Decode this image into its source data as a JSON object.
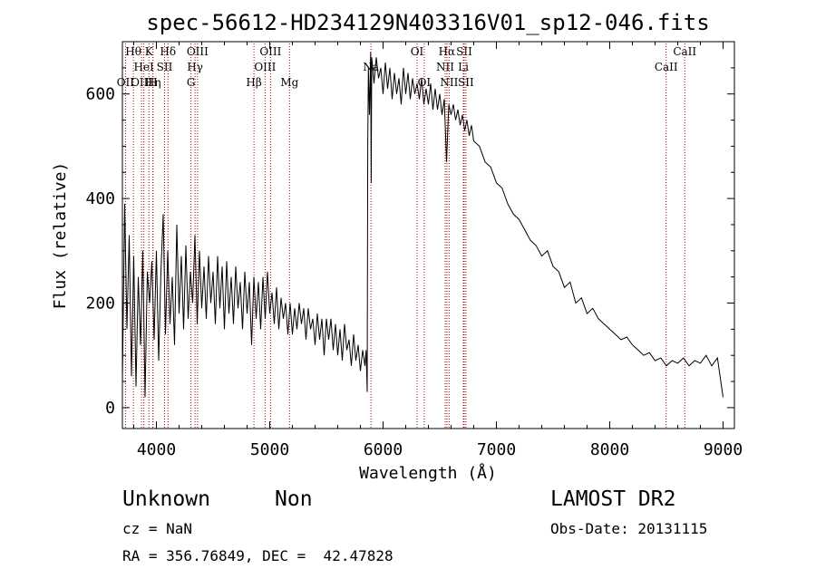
{
  "chart_data": {
    "type": "line",
    "title": "spec-56612-HD234129N403316V01_sp12-046.fits",
    "xlabel": "Wavelength (Å)",
    "ylabel": "Flux (relative)",
    "xlim": [
      3700,
      9100
    ],
    "ylim": [
      -40,
      700
    ],
    "xticks": [
      4000,
      5000,
      6000,
      7000,
      8000,
      9000
    ],
    "yticks": [
      0,
      200,
      400,
      600
    ],
    "grid": false,
    "series": [
      {
        "line_color": "#000000",
        "points": [
          [
            3700,
            50
          ],
          [
            3720,
            390
          ],
          [
            3740,
            150
          ],
          [
            3760,
            330
          ],
          [
            3780,
            60
          ],
          [
            3800,
            290
          ],
          [
            3820,
            40
          ],
          [
            3840,
            250
          ],
          [
            3860,
            120
          ],
          [
            3880,
            300
          ],
          [
            3900,
            20
          ],
          [
            3920,
            260
          ],
          [
            3940,
            200
          ],
          [
            3960,
            280
          ],
          [
            3980,
            130
          ],
          [
            4000,
            300
          ],
          [
            4020,
            90
          ],
          [
            4040,
            260
          ],
          [
            4060,
            370
          ],
          [
            4080,
            140
          ],
          [
            4100,
            300
          ],
          [
            4120,
            160
          ],
          [
            4140,
            250
          ],
          [
            4160,
            120
          ],
          [
            4180,
            350
          ],
          [
            4200,
            180
          ],
          [
            4220,
            290
          ],
          [
            4240,
            150
          ],
          [
            4260,
            310
          ],
          [
            4280,
            170
          ],
          [
            4300,
            260
          ],
          [
            4320,
            200
          ],
          [
            4340,
            330
          ],
          [
            4360,
            160
          ],
          [
            4380,
            300
          ],
          [
            4400,
            190
          ],
          [
            4420,
            270
          ],
          [
            4440,
            170
          ],
          [
            4460,
            290
          ],
          [
            4480,
            200
          ],
          [
            4500,
            260
          ],
          [
            4520,
            160
          ],
          [
            4540,
            290
          ],
          [
            4560,
            190
          ],
          [
            4580,
            270
          ],
          [
            4600,
            150
          ],
          [
            4620,
            280
          ],
          [
            4640,
            180
          ],
          [
            4660,
            250
          ],
          [
            4680,
            160
          ],
          [
            4700,
            270
          ],
          [
            4720,
            190
          ],
          [
            4740,
            240
          ],
          [
            4760,
            150
          ],
          [
            4780,
            260
          ],
          [
            4800,
            180
          ],
          [
            4820,
            240
          ],
          [
            4840,
            120
          ],
          [
            4860,
            250
          ],
          [
            4880,
            170
          ],
          [
            4900,
            240
          ],
          [
            4920,
            150
          ],
          [
            4940,
            250
          ],
          [
            4960,
            170
          ],
          [
            4980,
            260
          ],
          [
            5000,
            180
          ],
          [
            5020,
            220
          ],
          [
            5040,
            160
          ],
          [
            5060,
            230
          ],
          [
            5080,
            150
          ],
          [
            5100,
            210
          ],
          [
            5120,
            170
          ],
          [
            5140,
            200
          ],
          [
            5160,
            140
          ],
          [
            5180,
            200
          ],
          [
            5200,
            140
          ],
          [
            5220,
            190
          ],
          [
            5240,
            150
          ],
          [
            5260,
            200
          ],
          [
            5280,
            160
          ],
          [
            5300,
            190
          ],
          [
            5320,
            130
          ],
          [
            5340,
            190
          ],
          [
            5360,
            150
          ],
          [
            5380,
            170
          ],
          [
            5400,
            120
          ],
          [
            5420,
            180
          ],
          [
            5440,
            130
          ],
          [
            5460,
            170
          ],
          [
            5480,
            100
          ],
          [
            5500,
            170
          ],
          [
            5520,
            130
          ],
          [
            5540,
            170
          ],
          [
            5560,
            110
          ],
          [
            5580,
            160
          ],
          [
            5600,
            100
          ],
          [
            5620,
            150
          ],
          [
            5640,
            90
          ],
          [
            5660,
            160
          ],
          [
            5680,
            110
          ],
          [
            5700,
            130
          ],
          [
            5720,
            80
          ],
          [
            5740,
            140
          ],
          [
            5760,
            90
          ],
          [
            5780,
            120
          ],
          [
            5800,
            70
          ],
          [
            5820,
            110
          ],
          [
            5840,
            80
          ],
          [
            5850,
            110
          ],
          [
            5860,
            30
          ],
          [
            5865,
            500
          ],
          [
            5870,
            650
          ],
          [
            5880,
            560
          ],
          [
            5890,
            680
          ],
          [
            5895,
            430
          ],
          [
            5900,
            670
          ],
          [
            5920,
            620
          ],
          [
            5940,
            670
          ],
          [
            5960,
            630
          ],
          [
            5980,
            650
          ],
          [
            6000,
            600
          ],
          [
            6020,
            660
          ],
          [
            6040,
            610
          ],
          [
            6060,
            650
          ],
          [
            6080,
            590
          ],
          [
            6100,
            640
          ],
          [
            6120,
            600
          ],
          [
            6140,
            630
          ],
          [
            6160,
            580
          ],
          [
            6180,
            650
          ],
          [
            6200,
            600
          ],
          [
            6220,
            640
          ],
          [
            6240,
            590
          ],
          [
            6260,
            630
          ],
          [
            6280,
            600
          ],
          [
            6300,
            620
          ],
          [
            6320,
            590
          ],
          [
            6340,
            630
          ],
          [
            6360,
            580
          ],
          [
            6380,
            610
          ],
          [
            6400,
            580
          ],
          [
            6420,
            620
          ],
          [
            6440,
            570
          ],
          [
            6460,
            610
          ],
          [
            6480,
            570
          ],
          [
            6500,
            600
          ],
          [
            6520,
            560
          ],
          [
            6540,
            590
          ],
          [
            6560,
            470
          ],
          [
            6580,
            580
          ],
          [
            6600,
            560
          ],
          [
            6620,
            580
          ],
          [
            6640,
            550
          ],
          [
            6660,
            570
          ],
          [
            6680,
            540
          ],
          [
            6700,
            560
          ],
          [
            6720,
            530
          ],
          [
            6740,
            550
          ],
          [
            6760,
            520
          ],
          [
            6780,
            540
          ],
          [
            6800,
            510
          ],
          [
            6850,
            500
          ],
          [
            6900,
            470
          ],
          [
            6950,
            460
          ],
          [
            7000,
            430
          ],
          [
            7050,
            420
          ],
          [
            7100,
            390
          ],
          [
            7150,
            370
          ],
          [
            7200,
            360
          ],
          [
            7250,
            340
          ],
          [
            7300,
            320
          ],
          [
            7350,
            310
          ],
          [
            7400,
            290
          ],
          [
            7450,
            300
          ],
          [
            7500,
            270
          ],
          [
            7550,
            260
          ],
          [
            7600,
            230
          ],
          [
            7650,
            240
          ],
          [
            7700,
            200
          ],
          [
            7750,
            210
          ],
          [
            7800,
            180
          ],
          [
            7850,
            190
          ],
          [
            7900,
            170
          ],
          [
            7950,
            160
          ],
          [
            8000,
            150
          ],
          [
            8050,
            140
          ],
          [
            8100,
            130
          ],
          [
            8150,
            135
          ],
          [
            8200,
            120
          ],
          [
            8250,
            110
          ],
          [
            8300,
            100
          ],
          [
            8350,
            105
          ],
          [
            8400,
            90
          ],
          [
            8450,
            95
          ],
          [
            8500,
            80
          ],
          [
            8550,
            90
          ],
          [
            8600,
            85
          ],
          [
            8650,
            95
          ],
          [
            8700,
            80
          ],
          [
            8750,
            90
          ],
          [
            8800,
            85
          ],
          [
            8850,
            100
          ],
          [
            8900,
            80
          ],
          [
            8950,
            95
          ],
          [
            9000,
            20
          ]
        ]
      }
    ],
    "line_markers": [
      {
        "label": "OII",
        "wavelength": 3727,
        "row": 2
      },
      {
        "label": "Hθ",
        "wavelength": 3797,
        "row": 0
      },
      {
        "label": "OIII",
        "wavelength": 3869,
        "row": 2
      },
      {
        "label": "HeI",
        "wavelength": 3889,
        "row": 1
      },
      {
        "label": "K",
        "wavelength": 3934,
        "row": 0
      },
      {
        "label": "Hη",
        "wavelength": 3970,
        "row": 2
      },
      {
        "label": "H",
        "wavelength": 3968,
        "row": 2
      },
      {
        "label": "SII",
        "wavelength": 4072,
        "row": 1
      },
      {
        "label": "Hδ",
        "wavelength": 4102,
        "row": 0
      },
      {
        "label": "G",
        "wavelength": 4305,
        "row": 2
      },
      {
        "label": "Hγ",
        "wavelength": 4341,
        "row": 1
      },
      {
        "label": "OIII",
        "wavelength": 4363,
        "row": 0
      },
      {
        "label": "Hβ",
        "wavelength": 4861,
        "row": 2
      },
      {
        "label": "OIII",
        "wavelength": 4959,
        "row": 1
      },
      {
        "label": "OIII",
        "wavelength": 5007,
        "row": 0
      },
      {
        "label": "Mg",
        "wavelength": 5175,
        "row": 2
      },
      {
        "label": "Na",
        "wavelength": 5893,
        "row": 1
      },
      {
        "label": "OI",
        "wavelength": 6300,
        "row": 0
      },
      {
        "label": "OI",
        "wavelength": 6363,
        "row": 2
      },
      {
        "label": "NII",
        "wavelength": 6548,
        "row": 1
      },
      {
        "label": "Hα",
        "wavelength": 6563,
        "row": 0
      },
      {
        "label": "NII",
        "wavelength": 6583,
        "row": 2
      },
      {
        "label": "SII",
        "wavelength": 6716,
        "row": 0
      },
      {
        "label": "Li",
        "wavelength": 6708,
        "row": 1
      },
      {
        "label": "SII",
        "wavelength": 6731,
        "row": 2
      },
      {
        "label": "CaII",
        "wavelength": 8498,
        "row": 1
      },
      {
        "label": "CaII",
        "wavelength": 8662,
        "row": 0
      }
    ]
  },
  "info": {
    "class_label": "Unknown",
    "subclass_label": "Non",
    "cz_text": "cz = NaN",
    "radec_text": "RA = 356.76849, DEC =  42.47828",
    "survey_label": "LAMOST DR2",
    "obs_date_text": "Obs-Date: 20131115"
  }
}
